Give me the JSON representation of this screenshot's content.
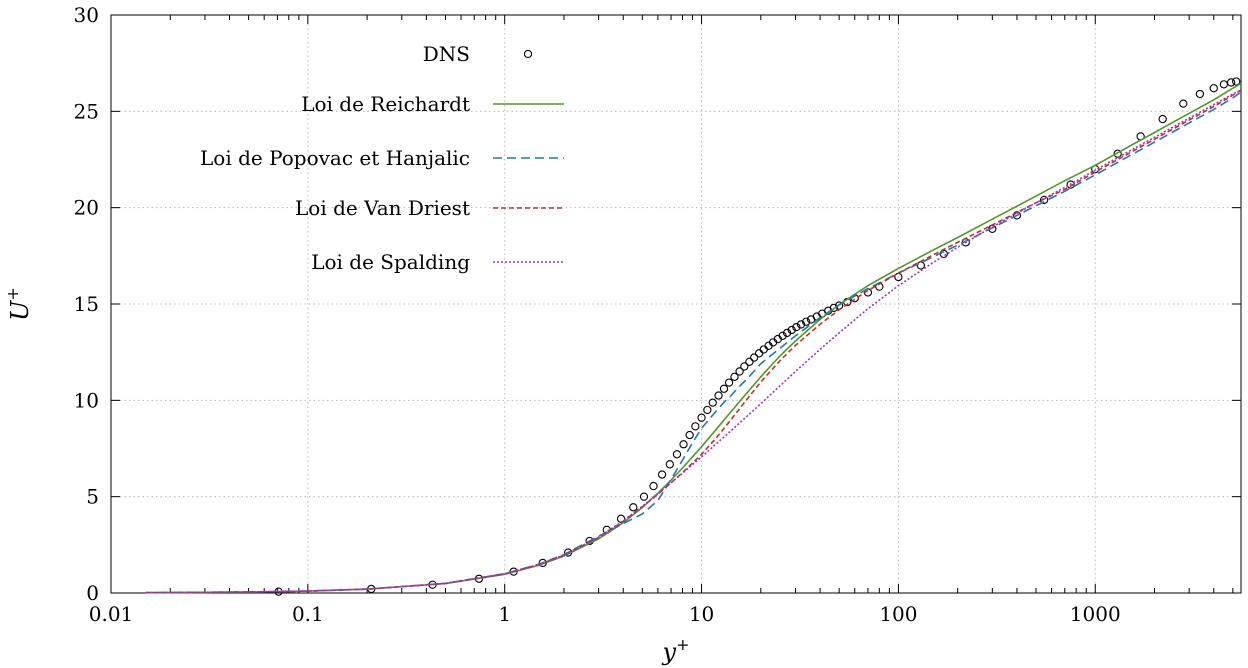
{
  "chart_data": {
    "type": "line",
    "xlabel": "y",
    "xlabel_sup": "+",
    "ylabel": "U",
    "ylabel_sup": "+",
    "xscale": "log",
    "xlim": [
      0.01,
      5500
    ],
    "ylim": [
      0,
      30
    ],
    "x_ticks": [
      0.01,
      0.1,
      1,
      10,
      100,
      1000
    ],
    "x_tick_labels": [
      "0.01",
      "0.1",
      "1",
      "10",
      "100",
      "1000"
    ],
    "y_ticks": [
      0,
      5,
      10,
      15,
      20,
      25,
      30
    ],
    "y_tick_labels": [
      "0",
      "5",
      "10",
      "15",
      "20",
      "25",
      "30"
    ],
    "grid": true,
    "legend_position": "top-left",
    "series": [
      {
        "name": "DNS",
        "style": "markers",
        "color": "#000000",
        "x": [
          0.071,
          0.21,
          0.43,
          0.74,
          1.11,
          1.56,
          2.1,
          2.7,
          3.3,
          3.9,
          4.5,
          5.1,
          5.7,
          6.3,
          6.9,
          7.5,
          8.1,
          8.7,
          9.3,
          10,
          10.7,
          11.4,
          12.2,
          13.0,
          13.8,
          14.7,
          15.6,
          16.5,
          17.5,
          18.5,
          19.6,
          20.7,
          21.9,
          23.1,
          24.4,
          25.8,
          27.2,
          28.7,
          30.3,
          32.0,
          34.0,
          36.0,
          38.5,
          41.0,
          44.0,
          47.0,
          50.0,
          55,
          60,
          70,
          80,
          100,
          130,
          170,
          220,
          300,
          400,
          550,
          750,
          1000,
          1300,
          1700,
          2200,
          2800,
          3400,
          4000,
          4500,
          4900,
          5200
        ],
        "y": [
          0.07,
          0.21,
          0.43,
          0.74,
          1.11,
          1.56,
          2.1,
          2.7,
          3.28,
          3.85,
          4.45,
          5.0,
          5.55,
          6.15,
          6.68,
          7.2,
          7.72,
          8.2,
          8.65,
          9.1,
          9.5,
          9.88,
          10.25,
          10.6,
          10.92,
          11.22,
          11.5,
          11.76,
          12.0,
          12.22,
          12.44,
          12.64,
          12.83,
          13.01,
          13.18,
          13.35,
          13.5,
          13.65,
          13.8,
          13.94,
          14.08,
          14.2,
          14.35,
          14.5,
          14.65,
          14.8,
          14.92,
          15.1,
          15.3,
          15.6,
          15.9,
          16.4,
          17.0,
          17.6,
          18.2,
          18.9,
          19.6,
          20.4,
          21.2,
          22.0,
          22.8,
          23.7,
          24.6,
          25.4,
          25.9,
          26.2,
          26.4,
          26.5,
          26.55
        ]
      },
      {
        "name": "Loi de Reichardt",
        "style": "solid",
        "color": "#4e9a26",
        "x": [
          0.015,
          0.05,
          0.1,
          0.2,
          0.5,
          1,
          1.5,
          2,
          3,
          4,
          5,
          6,
          7,
          8,
          9,
          10,
          12,
          14,
          17,
          20,
          25,
          30,
          40,
          50,
          70,
          100,
          150,
          200,
          300,
          500,
          700,
          1000,
          1500,
          2000,
          3000,
          4000,
          5000,
          5500
        ],
        "y": [
          0.015,
          0.05,
          0.1,
          0.2,
          0.49,
          0.97,
          1.45,
          1.92,
          2.81,
          3.65,
          4.44,
          5.18,
          5.86,
          6.49,
          7.07,
          7.6,
          8.55,
          9.37,
          10.38,
          11.22,
          12.3,
          13.08,
          14.2,
          14.97,
          15.95,
          16.85,
          17.8,
          18.45,
          19.4,
          20.6,
          21.4,
          22.2,
          23.2,
          23.9,
          24.9,
          25.6,
          26.2,
          26.45
        ]
      },
      {
        "name": "Loi de Popovac et Hanjalic",
        "style": "dashed",
        "color": "#1f78b4",
        "x": [
          0.015,
          0.05,
          0.1,
          0.2,
          0.5,
          1,
          1.5,
          2,
          3,
          4,
          5,
          6,
          7,
          8,
          9,
          10,
          11,
          12,
          13,
          14,
          15,
          17,
          20,
          25,
          30,
          40,
          50,
          70,
          100,
          150,
          200,
          300,
          500,
          700,
          1000,
          1500,
          2000,
          3000,
          4000,
          5000,
          5500
        ],
        "y": [
          0.015,
          0.05,
          0.1,
          0.2,
          0.5,
          1.0,
          1.5,
          2.0,
          2.95,
          3.6,
          4.1,
          4.8,
          5.9,
          6.9,
          7.8,
          8.55,
          9.05,
          9.5,
          9.9,
          10.2,
          10.55,
          11.1,
          11.9,
          12.7,
          13.35,
          14.3,
          14.95,
          15.8,
          16.6,
          17.45,
          18.05,
          18.95,
          20.1,
          20.85,
          21.7,
          22.7,
          23.4,
          24.4,
          25.1,
          25.7,
          26.0
        ]
      },
      {
        "name": "Loi de Van Driest",
        "style": "dotted-dense",
        "color": "#d62728",
        "x": [
          0.015,
          0.05,
          0.1,
          0.2,
          0.5,
          1,
          1.5,
          2,
          3,
          4,
          5,
          6,
          7,
          8,
          9,
          10,
          12,
          14,
          17,
          20,
          25,
          30,
          40,
          50,
          70,
          100,
          150,
          200,
          300,
          500,
          700,
          1000,
          1500,
          2000,
          3000,
          4000,
          5000,
          5500
        ],
        "y": [
          0.015,
          0.05,
          0.1,
          0.2,
          0.5,
          0.99,
          1.48,
          1.96,
          2.88,
          3.72,
          4.47,
          5.13,
          5.72,
          6.25,
          6.74,
          7.2,
          8.1,
          8.95,
          10.05,
          10.95,
          12.05,
          12.85,
          13.95,
          14.7,
          15.7,
          16.6,
          17.55,
          18.2,
          19.1,
          20.25,
          20.95,
          21.85,
          22.85,
          23.55,
          24.55,
          25.25,
          25.85,
          26.1
        ]
      },
      {
        "name": "Loi de Spalding",
        "style": "dotted",
        "color": "#9b30d9",
        "x": [
          0.015,
          0.05,
          0.1,
          0.2,
          0.5,
          1,
          1.5,
          2,
          3,
          4,
          5,
          6,
          7,
          8,
          9,
          10,
          12,
          14,
          17,
          20,
          25,
          30,
          40,
          50,
          70,
          100,
          150,
          200,
          300,
          500,
          700,
          1000,
          1500,
          2000,
          3000,
          4000,
          5000,
          5500
        ],
        "y": [
          0.015,
          0.05,
          0.1,
          0.2,
          0.5,
          1.0,
          1.49,
          1.97,
          2.9,
          3.75,
          4.5,
          5.15,
          5.72,
          6.22,
          6.67,
          7.07,
          7.78,
          8.39,
          9.17,
          9.82,
          10.75,
          11.5,
          12.65,
          13.5,
          14.75,
          15.95,
          17.15,
          17.95,
          19.0,
          20.25,
          21.05,
          21.95,
          22.95,
          23.65,
          24.65,
          25.35,
          25.9,
          26.1
        ]
      }
    ]
  }
}
